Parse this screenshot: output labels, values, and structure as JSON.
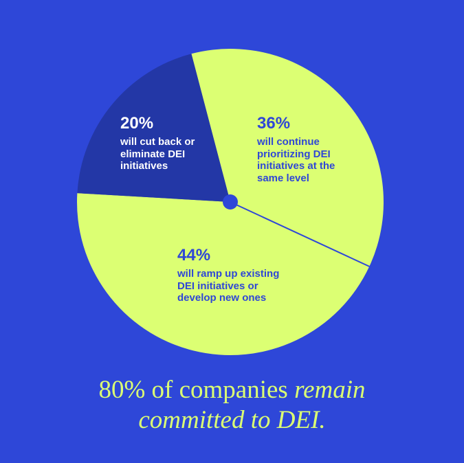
{
  "chart_data": {
    "type": "pie",
    "values": [
      36,
      44,
      20
    ],
    "value_labels": [
      "36%",
      "44%",
      "20%"
    ],
    "categories": [
      "will continue prioritizing DEI initiatives at the same level",
      "will ramp up existing DEI initiatives or develop new ones",
      "will cut back or eliminate DEI initiatives"
    ],
    "colors": [
      "#dcff73",
      "#dcff73",
      "#2337a6"
    ],
    "label_colors": [
      "#2f47d6",
      "#2f47d6",
      "#ffffff"
    ],
    "title": "80% of companies",
    "title_emphasis": "remain committed to DEI."
  }
}
